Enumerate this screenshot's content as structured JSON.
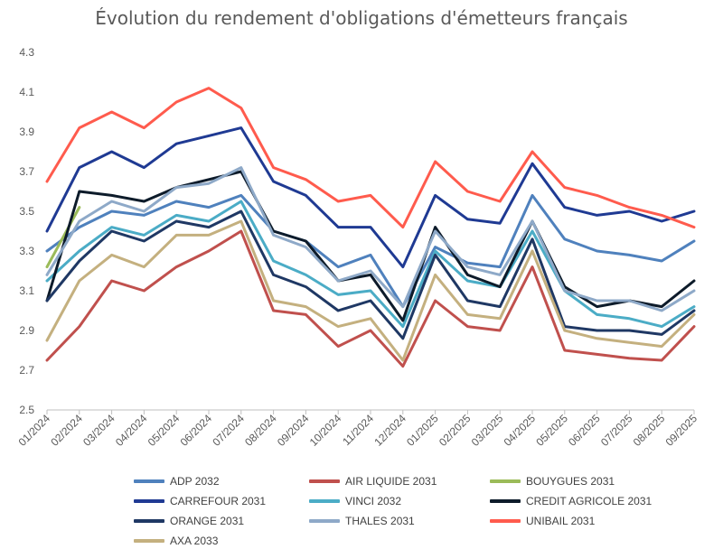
{
  "chart_data": {
    "type": "line",
    "title": "Évolution du rendement d'obligations d'émetteurs français",
    "xlabel": "",
    "ylabel": "",
    "ylim": [
      2.5,
      4.3
    ],
    "yticks": [
      "2.5",
      "2.7",
      "2.9",
      "3.1",
      "3.3",
      "3.5",
      "3.7",
      "3.9",
      "4.1",
      "4.3"
    ],
    "x_tick_labels": [
      "01/2024",
      "02/2024",
      "03/2024",
      "04/2024",
      "05/2024",
      "06/2024",
      "07/2024",
      "08/2024",
      "09/2024",
      "10/2024",
      "11/2024",
      "12/2024",
      "01/2025",
      "02/2025",
      "03/2025",
      "04/2025",
      "05/2025",
      "06/2025",
      "07/2025",
      "08/2025",
      "09/2025"
    ],
    "x": [
      "01/2024",
      "02/2024",
      "03/2024",
      "04/2024",
      "05/2024",
      "06/2024",
      "07/2024",
      "08/2024",
      "09/2024",
      "10/2024",
      "11/2024",
      "12/2024",
      "01/2025",
      "02/2025",
      "03/2025",
      "04/2025",
      "05/2025",
      "06/2025",
      "07/2025",
      "08/2025",
      "09/2025"
    ],
    "grid": false,
    "legend_position": "bottom",
    "series": [
      {
        "name": "ADP 2032",
        "color": "#4f81bd",
        "values": [
          3.3,
          3.42,
          3.5,
          3.48,
          3.55,
          3.52,
          3.58,
          3.4,
          3.35,
          3.22,
          3.28,
          3.02,
          3.32,
          3.24,
          3.22,
          3.58,
          3.36,
          3.3,
          3.28,
          3.25,
          3.35
        ]
      },
      {
        "name": "AIR LIQUIDE 2031",
        "color": "#c0504d",
        "values": [
          2.75,
          2.92,
          3.15,
          3.1,
          3.22,
          3.3,
          3.4,
          3.0,
          2.98,
          2.82,
          2.9,
          2.72,
          3.05,
          2.92,
          2.9,
          3.22,
          2.8,
          2.78,
          2.76,
          2.75,
          2.92
        ]
      },
      {
        "name": "BOUYGUES 2031",
        "color": "#9bbb59",
        "values": [
          3.22,
          3.52,
          null,
          null,
          null,
          null,
          null,
          null,
          null,
          null,
          null,
          null,
          null,
          null,
          null,
          null,
          null,
          null,
          null,
          null,
          null
        ]
      },
      {
        "name": "CARREFOUR 2031",
        "color": "#1f3a93",
        "values": [
          3.4,
          3.72,
          3.8,
          3.72,
          3.84,
          3.88,
          3.92,
          3.65,
          3.58,
          3.42,
          3.42,
          3.22,
          3.58,
          3.46,
          3.44,
          3.74,
          3.52,
          3.48,
          3.5,
          3.45,
          3.5
        ]
      },
      {
        "name": "VINCI 2032",
        "color": "#4bacc6",
        "values": [
          3.15,
          3.3,
          3.42,
          3.38,
          3.48,
          3.45,
          3.55,
          3.25,
          3.18,
          3.08,
          3.1,
          2.92,
          3.3,
          3.15,
          3.12,
          3.4,
          3.1,
          2.98,
          2.96,
          2.92,
          3.02
        ]
      },
      {
        "name": "CREDIT AGRICOLE 2031",
        "color": "#0d1b2a",
        "values": [
          3.05,
          3.6,
          3.58,
          3.55,
          3.62,
          3.66,
          3.7,
          3.4,
          3.35,
          3.15,
          3.18,
          2.95,
          3.42,
          3.18,
          3.12,
          3.45,
          3.12,
          3.02,
          3.05,
          3.02,
          3.15
        ]
      },
      {
        "name": "ORANGE 2031",
        "color": "#1f3864",
        "values": [
          3.05,
          3.25,
          3.4,
          3.35,
          3.45,
          3.42,
          3.5,
          3.18,
          3.12,
          3.0,
          3.05,
          2.86,
          3.28,
          3.05,
          3.02,
          3.36,
          2.92,
          2.9,
          2.9,
          2.88,
          3.0
        ]
      },
      {
        "name": "THALES 2031",
        "color": "#8ea9c8",
        "values": [
          3.18,
          3.45,
          3.55,
          3.5,
          3.62,
          3.64,
          3.72,
          3.38,
          3.32,
          3.15,
          3.2,
          3.02,
          3.4,
          3.22,
          3.18,
          3.45,
          3.1,
          3.05,
          3.05,
          3.0,
          3.1
        ]
      },
      {
        "name": "UNIBAIL 2031",
        "color": "#ff5b4d",
        "values": [
          3.65,
          3.92,
          4.0,
          3.92,
          4.05,
          4.12,
          4.02,
          3.72,
          3.66,
          3.55,
          3.58,
          3.42,
          3.75,
          3.6,
          3.55,
          3.8,
          3.62,
          3.58,
          3.52,
          3.48,
          3.42
        ]
      },
      {
        "name": "AXA 2033",
        "color": "#c4b07f",
        "values": [
          2.85,
          3.15,
          3.28,
          3.22,
          3.38,
          3.38,
          3.45,
          3.05,
          3.02,
          2.92,
          2.96,
          2.75,
          3.18,
          2.98,
          2.96,
          3.3,
          2.9,
          2.86,
          2.84,
          2.82,
          2.98
        ]
      }
    ]
  }
}
